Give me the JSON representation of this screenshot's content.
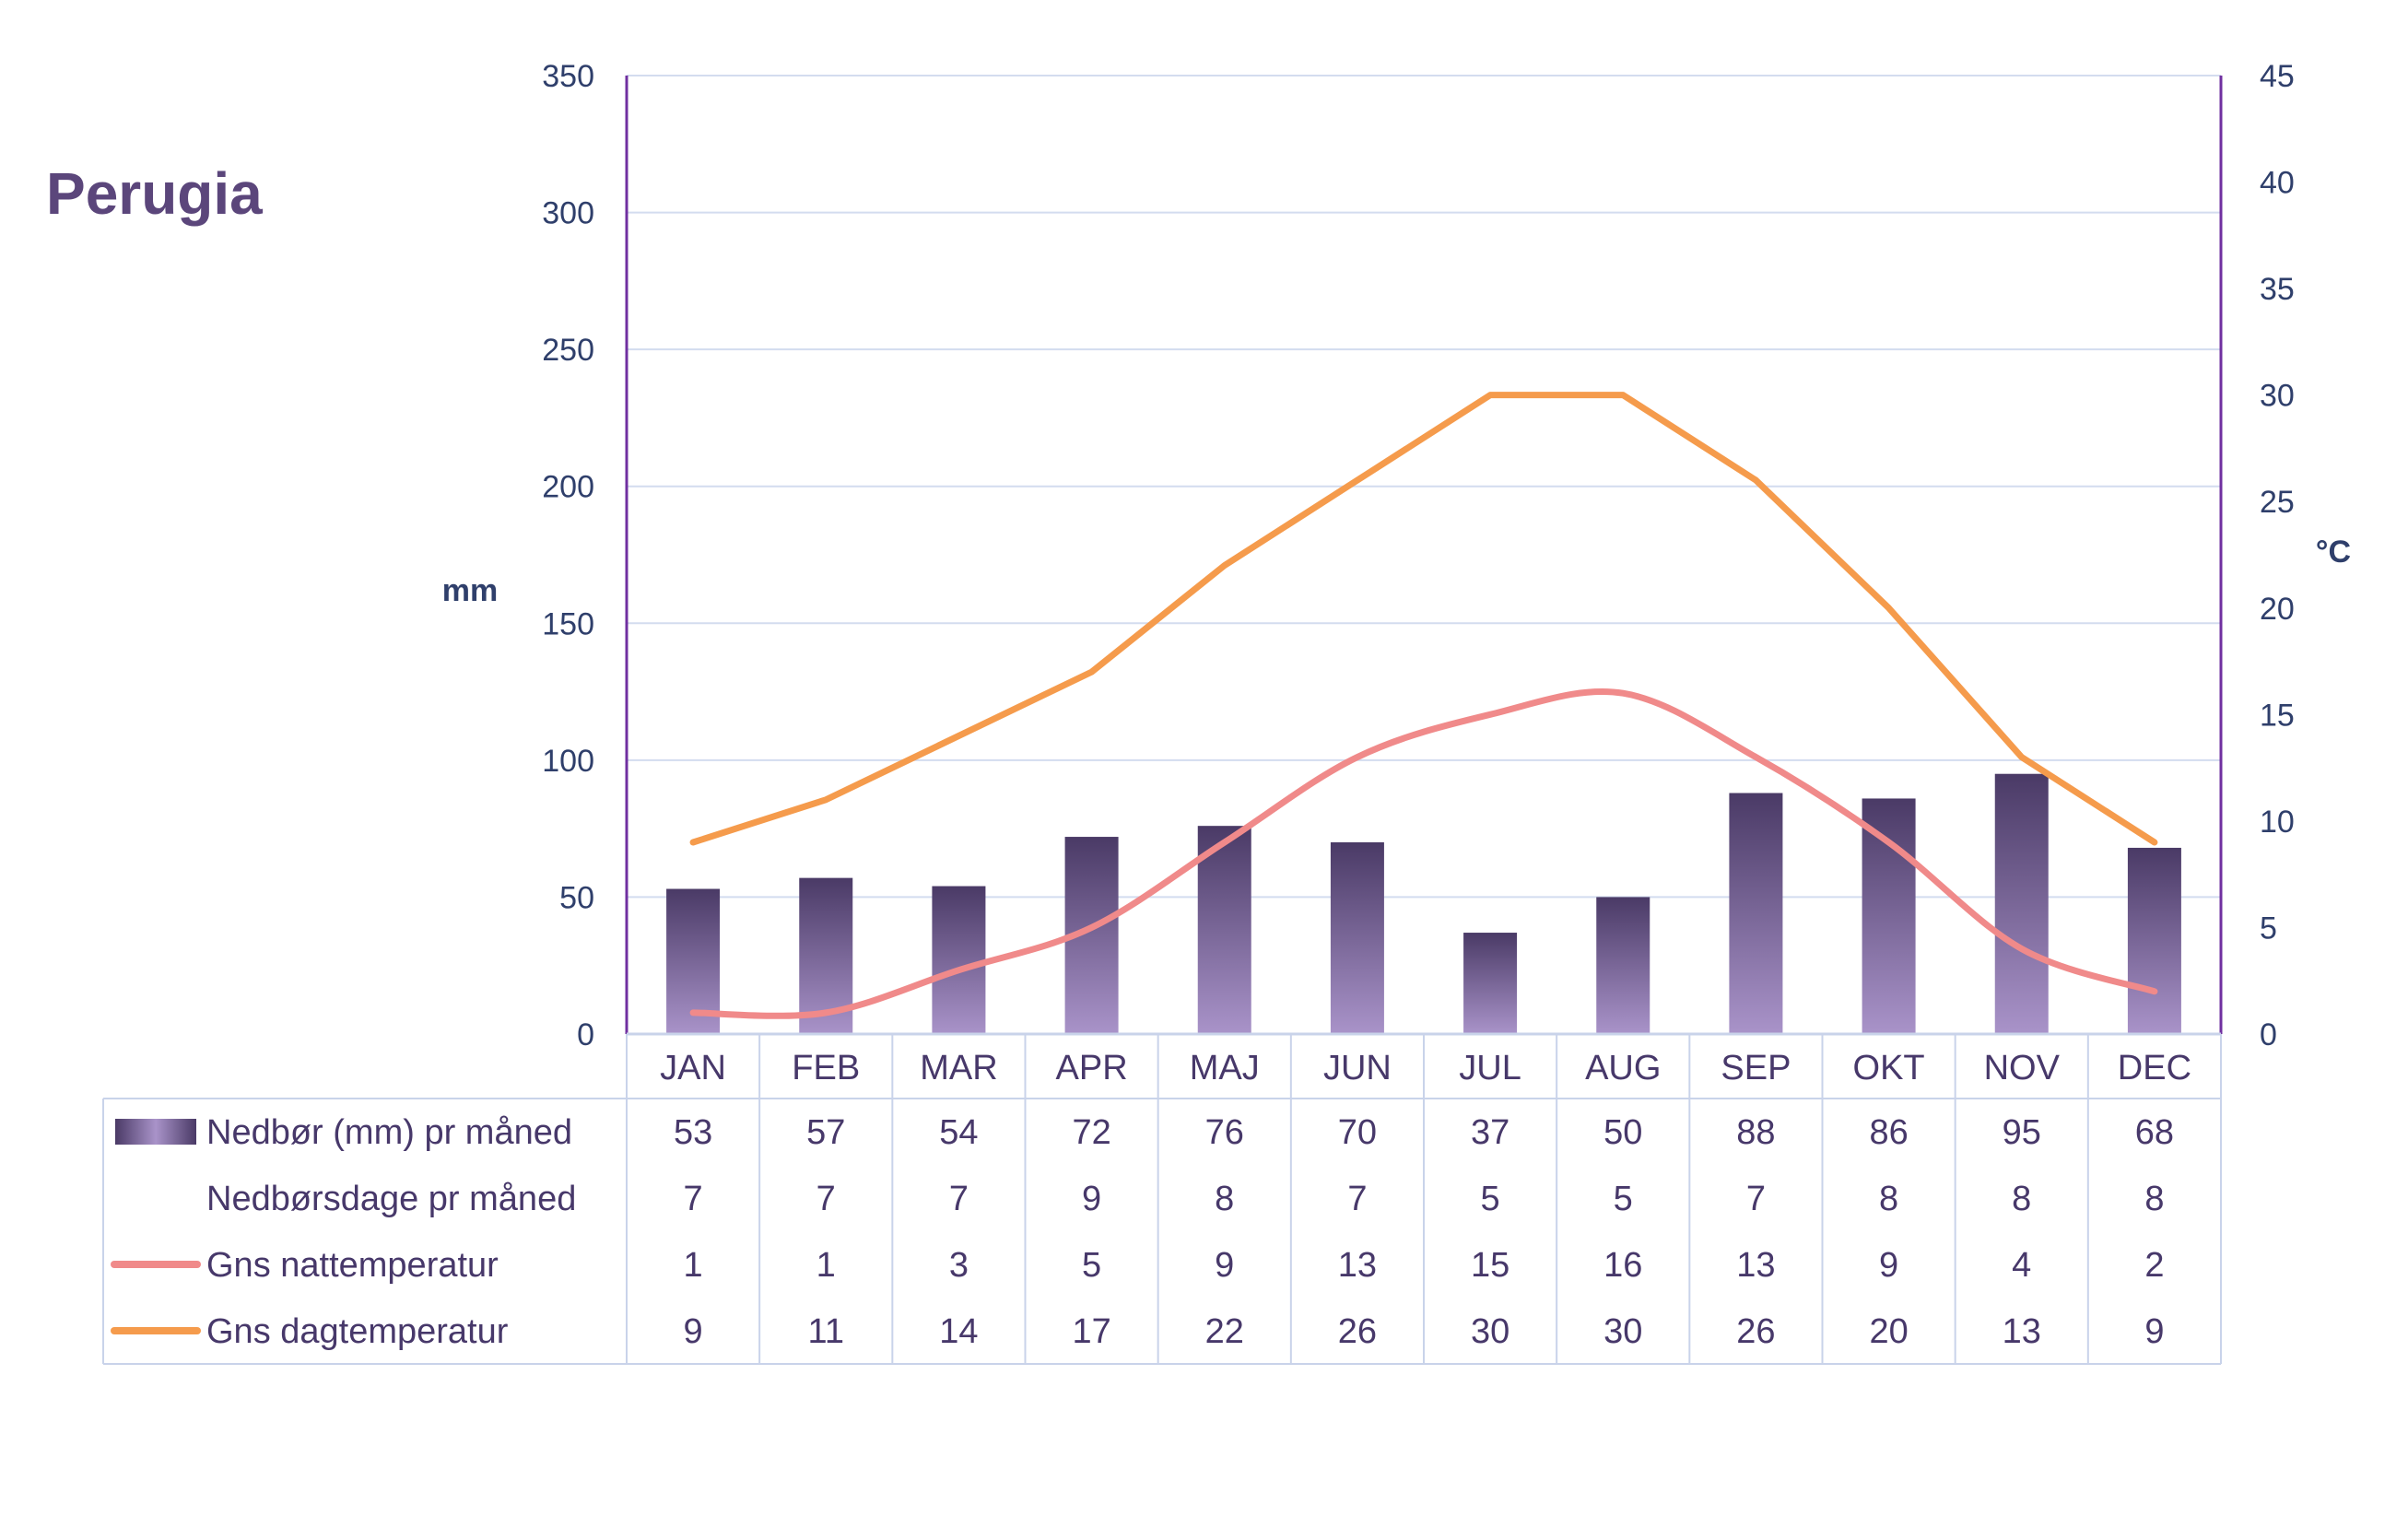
{
  "colors": {
    "title": "#5b467b",
    "axis_text": "#2f3f6b",
    "axis_line": "#7030a0",
    "grid": "#d3dcef",
    "table_border": "#c9d3ea",
    "table_text": "#47386a",
    "bar_top": "#4a3a66",
    "bar_bottom": "#a993c9",
    "night_temp": "#f08a8a",
    "day_temp": "#f59b4c"
  },
  "chart_data": {
    "type": "bar",
    "title": "Perugia",
    "categories": [
      "JAN",
      "FEB",
      "MAR",
      "APR",
      "MAJ",
      "JUN",
      "JUL",
      "AUG",
      "SEP",
      "OKT",
      "NOV",
      "DEC"
    ],
    "ylabel_left": "mm",
    "ylabel_right": "°C",
    "ylim_left": [
      0,
      350
    ],
    "yticks_left": [
      0,
      50,
      100,
      150,
      200,
      250,
      300,
      350
    ],
    "ylim_right": [
      0,
      45
    ],
    "yticks_right": [
      0,
      5,
      10,
      15,
      20,
      25,
      30,
      35,
      40,
      45
    ],
    "grid": true,
    "legend": "table-below",
    "series": [
      {
        "name": "Nedbør (mm) pr måned",
        "kind": "bar",
        "axis": "left",
        "values": [
          53,
          57,
          54,
          72,
          76,
          70,
          37,
          50,
          88,
          86,
          95,
          68
        ]
      },
      {
        "name": "Nedbørsdage pr måned",
        "kind": "table-only",
        "values": [
          7,
          7,
          7,
          9,
          8,
          7,
          5,
          5,
          7,
          8,
          8,
          8
        ]
      },
      {
        "name": "Gns nattemperatur",
        "kind": "line",
        "axis": "right",
        "values": [
          1,
          1,
          3,
          5,
          9,
          13,
          15,
          16,
          13,
          9,
          4,
          2
        ]
      },
      {
        "name": "Gns dagtemperatur",
        "kind": "line",
        "axis": "right",
        "values": [
          9,
          11,
          14,
          17,
          22,
          26,
          30,
          30,
          26,
          20,
          13,
          9
        ]
      }
    ]
  }
}
